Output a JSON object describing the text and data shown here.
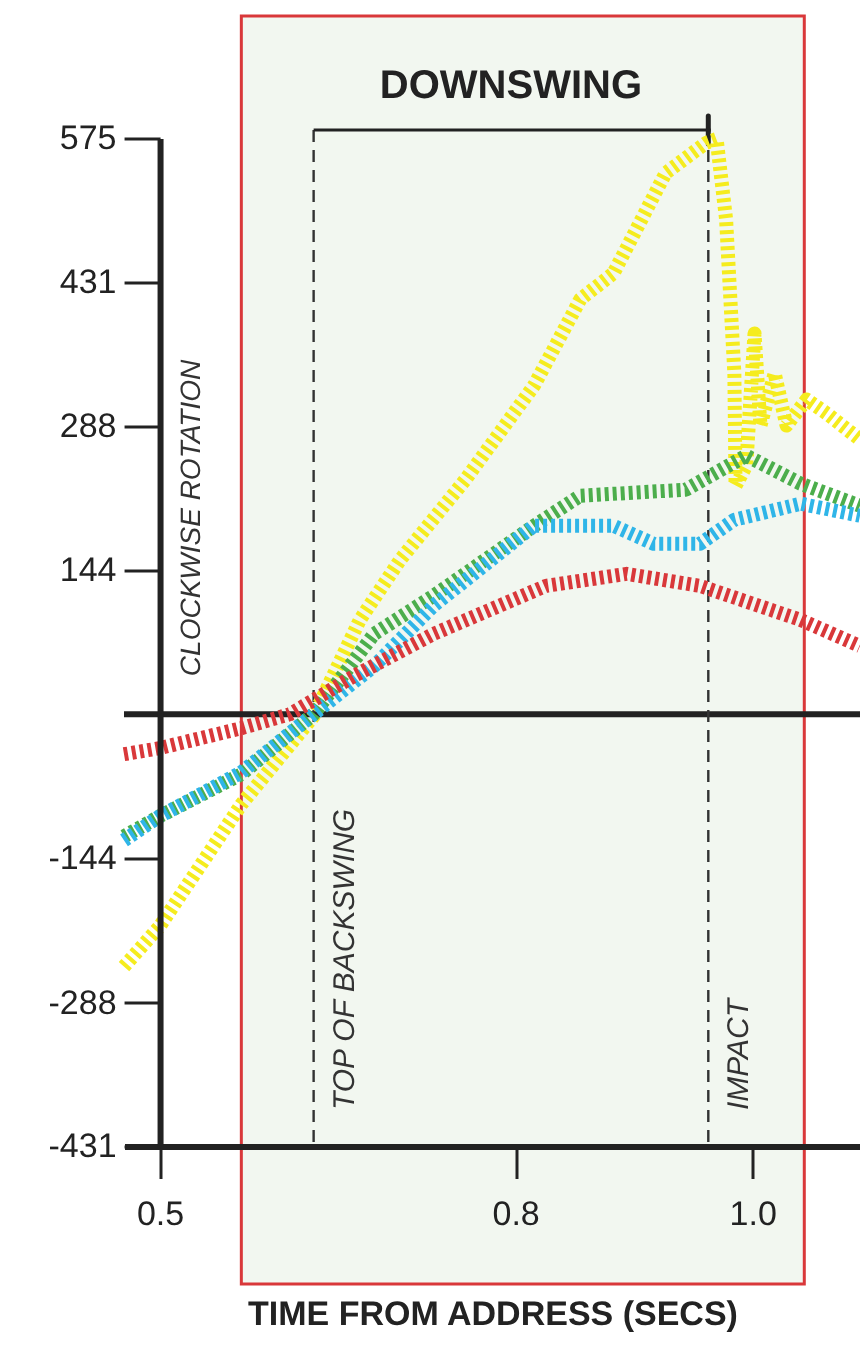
{
  "chart_data": {
    "type": "line",
    "xlabel": "TIME FROM ADDRESS (SECS)",
    "ylabel": "CLOCKWISE ROTATION",
    "annotations": [
      "DOWNSWING"
    ],
    "xlim": [
      0.47,
      1.091
    ],
    "ylim": [
      -431,
      575
    ],
    "xticks": [
      0.5,
      0.8,
      {
        "value": 1.0,
        "label": "1.0"
      }
    ],
    "yticks": [
      -431,
      -288,
      -144,
      144,
      288,
      431,
      575
    ],
    "grid": false,
    "line_style": "dotted",
    "ref_lines": [
      {
        "axis": "y",
        "value": 0,
        "label": null,
        "color": "#222222",
        "line_style": "solid"
      },
      {
        "axis": "x",
        "value": 0.63,
        "label": "TOP OF BACKSWING",
        "color": "#333333",
        "line_style": "dashed"
      },
      {
        "axis": "x",
        "value": 0.963,
        "label": "IMPACT",
        "color": "#333333",
        "line_style": "dashed"
      }
    ],
    "bands": [
      {
        "axis": "x",
        "from": 0.569,
        "to": 1.044,
        "label": null,
        "color": "#f2f7f0"
      }
    ],
    "series": [
      {
        "color": "#f5ec1e",
        "x": [
          0.47,
          0.5,
          0.569,
          0.63,
          0.669,
          0.703,
          0.758,
          0.816,
          0.855,
          0.883,
          0.927,
          0.961,
          0.97,
          0.978,
          0.985,
          0.986,
          0.995,
          1.002,
          1.007,
          1.019,
          1.029,
          1.046,
          1.063,
          1.091
        ],
        "values": [
          -252,
          -212,
          -90,
          -2,
          94,
          154,
          234,
          328,
          414,
          440,
          540,
          570,
          574,
          494,
          340,
          228,
          248,
          380,
          288,
          340,
          288,
          314,
          300,
          274
        ]
      },
      {
        "color": "#4cae4c",
        "x": [
          0.47,
          0.5,
          0.569,
          0.63,
          0.681,
          0.731,
          0.782,
          0.816,
          0.855,
          0.944,
          0.995,
          1.041,
          1.091
        ],
        "values": [
          -122,
          -102,
          -60,
          0,
          80,
          118,
          160,
          188,
          218,
          224,
          258,
          230,
          208
        ]
      },
      {
        "color": "#2fb5e8",
        "x": [
          0.47,
          0.5,
          0.569,
          0.63,
          0.681,
          0.731,
          0.816,
          0.883,
          0.917,
          0.956,
          0.985,
          1.041,
          1.091
        ],
        "values": [
          -126,
          -102,
          -58,
          0,
          48,
          108,
          188,
          188,
          170,
          170,
          194,
          210,
          198
        ]
      },
      {
        "color": "#d9383a",
        "x": [
          0.47,
          0.5,
          0.569,
          0.61,
          0.664,
          0.731,
          0.826,
          0.894,
          0.956,
          1.041,
          1.091
        ],
        "values": [
          -40,
          -34,
          -14,
          0,
          38,
          80,
          128,
          140,
          128,
          94,
          68
        ]
      }
    ]
  }
}
